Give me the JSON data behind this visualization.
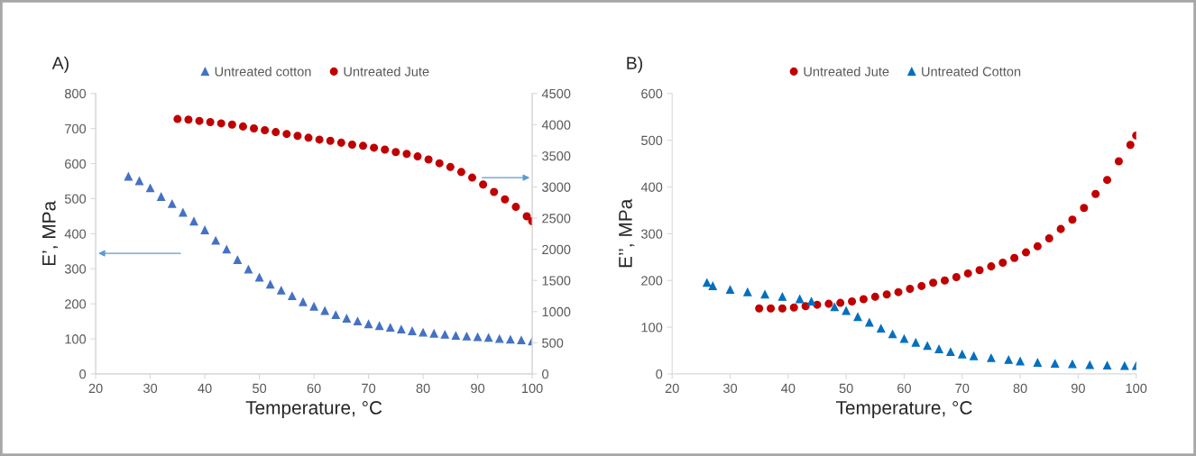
{
  "chart_data": [
    {
      "type": "scatter",
      "title": "A)",
      "xlabel": "Temperature, °C",
      "ylabel": "E’, MPa",
      "xlim": [
        20,
        100
      ],
      "xticks": [
        20,
        30,
        40,
        50,
        60,
        70,
        80,
        90,
        100
      ],
      "ylim": [
        0,
        800
      ],
      "yticks": [
        0,
        100,
        200,
        300,
        400,
        500,
        600,
        700,
        800
      ],
      "y2lim": [
        0,
        4500
      ],
      "y2ticks": [
        0,
        500,
        1000,
        1500,
        2000,
        2500,
        3000,
        3500,
        4000,
        4500
      ],
      "grid": false,
      "legend": "top",
      "series": [
        {
          "name": "Untreated cotton",
          "color": "#4472c4",
          "marker": "triangle",
          "x": [
            26,
            28,
            30,
            32,
            34,
            36,
            38,
            40,
            42,
            44,
            46,
            48,
            50,
            52,
            54,
            56,
            58,
            60,
            62,
            64,
            66,
            68,
            70,
            72,
            74,
            76,
            78,
            80,
            82,
            84,
            86,
            88,
            90,
            92,
            94,
            96,
            98,
            100
          ],
          "values": [
            563,
            550,
            530,
            505,
            485,
            460,
            435,
            410,
            380,
            355,
            325,
            298,
            275,
            255,
            238,
            222,
            205,
            192,
            180,
            168,
            158,
            150,
            142,
            137,
            132,
            127,
            122,
            118,
            115,
            112,
            109,
            107,
            105,
            103,
            100,
            98,
            96,
            93
          ]
        },
        {
          "name": "Untreated Jute",
          "color": "#c00000",
          "marker": "circle",
          "axis": "y2",
          "x": [
            35,
            37,
            39,
            41,
            43,
            45,
            47,
            49,
            51,
            53,
            55,
            57,
            59,
            61,
            63,
            65,
            67,
            69,
            71,
            73,
            75,
            77,
            79,
            81,
            83,
            85,
            87,
            89,
            91,
            93,
            95,
            97,
            99,
            100
          ],
          "values": [
            4090,
            4080,
            4060,
            4040,
            4020,
            4000,
            3970,
            3940,
            3910,
            3880,
            3850,
            3820,
            3790,
            3760,
            3740,
            3710,
            3680,
            3660,
            3630,
            3600,
            3560,
            3530,
            3490,
            3440,
            3380,
            3320,
            3240,
            3150,
            3040,
            2920,
            2800,
            2680,
            2530,
            2450
          ]
        }
      ]
    },
    {
      "type": "scatter",
      "title": "B)",
      "xlabel": "Temperature, °C",
      "ylabel": "E’’, MPa",
      "xlim": [
        20,
        100
      ],
      "xticks": [
        20,
        30,
        40,
        50,
        60,
        70,
        80,
        90,
        100
      ],
      "ylim": [
        0,
        600
      ],
      "yticks": [
        0,
        100,
        200,
        300,
        400,
        500,
        600
      ],
      "grid": false,
      "legend": "top",
      "series": [
        {
          "name": "Untreated Jute",
          "color": "#c00000",
          "marker": "circle",
          "x": [
            35,
            37,
            39,
            41,
            43,
            45,
            47,
            49,
            51,
            53,
            55,
            57,
            59,
            61,
            63,
            65,
            67,
            69,
            71,
            73,
            75,
            77,
            79,
            81,
            83,
            85,
            87,
            89,
            91,
            93,
            95,
            97,
            99,
            100
          ],
          "values": [
            140,
            140,
            140,
            142,
            145,
            148,
            150,
            152,
            155,
            160,
            165,
            170,
            175,
            182,
            188,
            195,
            200,
            207,
            215,
            222,
            230,
            238,
            248,
            260,
            273,
            290,
            310,
            330,
            355,
            385,
            415,
            455,
            490,
            510
          ]
        },
        {
          "name": "Untreated Cotton",
          "color": "#0070c0",
          "marker": "triangle",
          "x": [
            26,
            27,
            30,
            33,
            36,
            39,
            42,
            44,
            48,
            50,
            52,
            54,
            56,
            58,
            60,
            62,
            64,
            66,
            68,
            70,
            72,
            75,
            78,
            80,
            83,
            86,
            89,
            92,
            95,
            98,
            100
          ],
          "values": [
            195,
            188,
            180,
            175,
            170,
            165,
            160,
            155,
            143,
            135,
            122,
            110,
            97,
            85,
            75,
            67,
            60,
            53,
            47,
            42,
            38,
            34,
            30,
            27,
            24,
            22,
            21,
            19,
            18,
            17,
            17
          ]
        }
      ]
    }
  ]
}
